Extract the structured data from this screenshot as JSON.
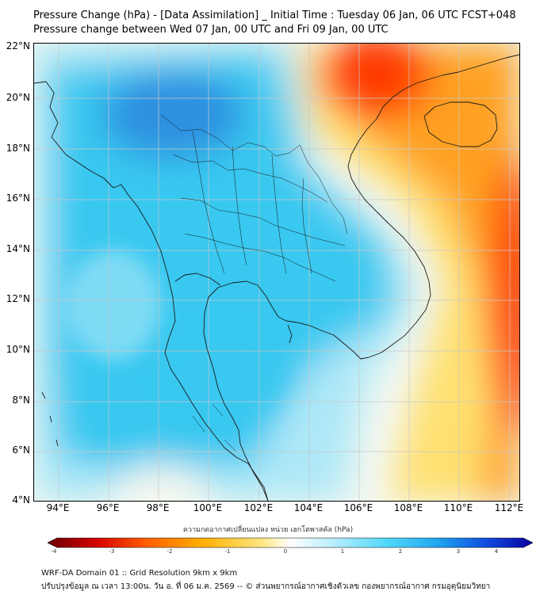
{
  "header": {
    "title_line1": "Pressure Change (hPa) - [Data Assimilation] _ Initial Time : Tuesday 06 Jan, 06 UTC FCST+048",
    "title_line2": "Pressure change between Wed 07 Jan, 00 UTC and Fri 09 Jan, 00 UTC"
  },
  "map": {
    "lat_labels": [
      "22°N",
      "20°N",
      "18°N",
      "16°N",
      "14°N",
      "12°N",
      "10°N",
      "8°N",
      "6°N",
      "4°N"
    ],
    "lon_labels": [
      "94°E",
      "96°E",
      "98°E",
      "100°E",
      "102°E",
      "104°E",
      "106°E",
      "108°E",
      "110°E",
      "112°E"
    ],
    "colors": {
      "strong_rise": "#2f8fe0",
      "rise": "#38c8f0",
      "slight_rise": "#aee8f8",
      "neutral": "#f4f8f0",
      "slight_fall": "#ffe070",
      "fall": "#ffa020",
      "strong_fall": "#ff3a00",
      "coast_line": "#1a1a1a",
      "grid_line": "#c8c8c8"
    }
  },
  "colorbar": {
    "label": "ความกดอากาศเปลี่ยนแปลง หน่วย เฮกโตพาสคัล (hPa)",
    "tick_labels": [
      "-4",
      "-3",
      "-2",
      "-1",
      "0",
      "1",
      "2",
      "3",
      "4"
    ],
    "colors": [
      "#6a0000",
      "#d40000",
      "#ff5a00",
      "#ffb000",
      "#ffe680",
      "#ffffff",
      "#bfefff",
      "#50d8f8",
      "#20a8f0",
      "#1050e0",
      "#0a00a0"
    ]
  },
  "footer": {
    "line1": "WRF-DA Domain 01 :: Grid Resolution 9km x 9km",
    "line2": "ปรับปรุงข้อมูล ณ เวลา 13:00น. วัน อ. ที่ 06 ม.ค. 2569 -- © ส่วนพยากรณ์อากาศเชิงตัวเลข กองพยากรณ์อากาศ กรมอุตุนิยมวิทยา"
  }
}
